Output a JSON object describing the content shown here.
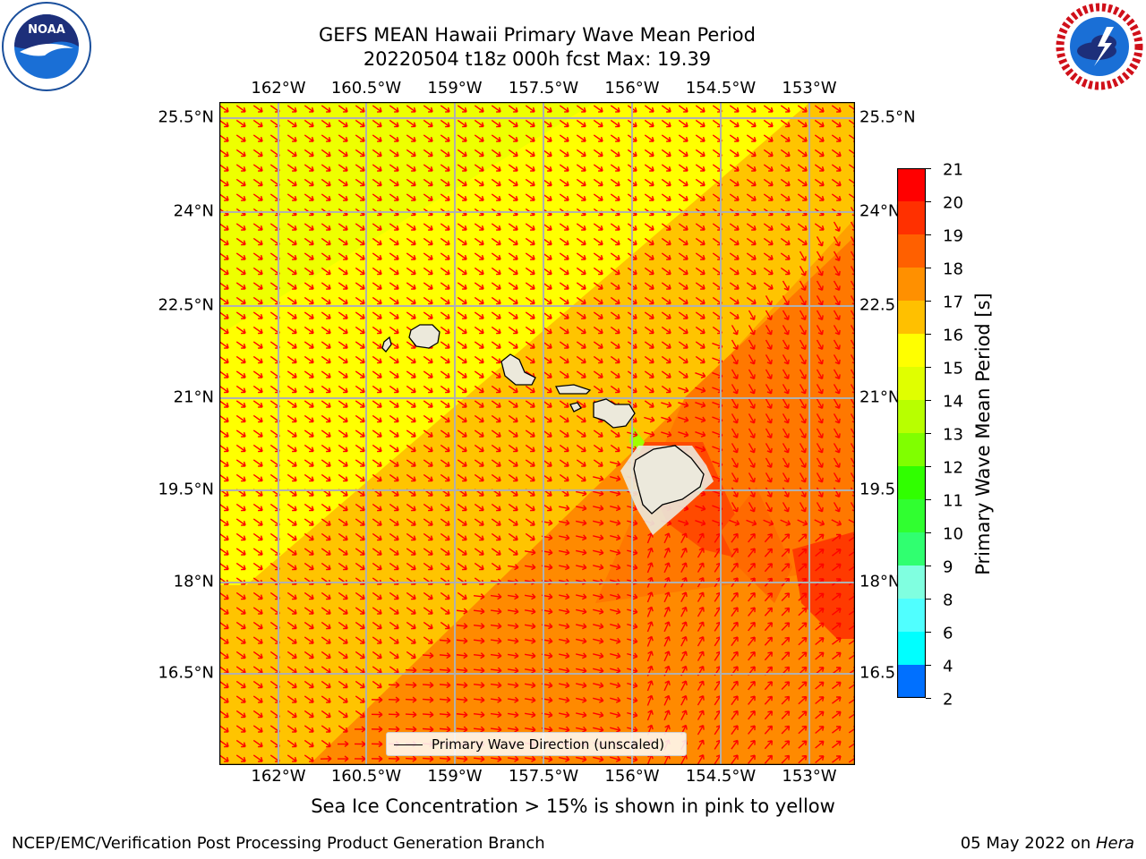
{
  "title_line1": "GEFS MEAN Hawaii Primary Wave Mean Period",
  "title_line2": "20220504 t18z 000h fcst   Max: 19.39",
  "logos": {
    "left": "noaa-logo",
    "right": "nws-logo"
  },
  "map": {
    "lon_ticks": [
      "162°W",
      "160.5°W",
      "159°W",
      "157.5°W",
      "156°W",
      "154.5°W",
      "153°W"
    ],
    "lat_ticks_left": [
      "25.5°N",
      "24°N",
      "22.5°N",
      "21°N",
      "19.5°N",
      "18°N",
      "16.5°N"
    ],
    "lat_ticks_right": [
      "25.5°N",
      "24°N",
      "22.5",
      "21°N",
      "19.5",
      "18°N",
      "16.5"
    ],
    "legend_text": "Primary Wave Direction (unscaled)",
    "arrow_color": "#ff0000",
    "grid_color": "#b0b0b0",
    "land_color": "#ece9db"
  },
  "colorbar": {
    "ticks": [
      "21",
      "20",
      "19",
      "18",
      "17",
      "16",
      "15",
      "14",
      "13",
      "12",
      "11",
      "10",
      "9",
      "8",
      "6",
      "4",
      "2"
    ],
    "colors": [
      "#ff0000",
      "#ff3000",
      "#ff6000",
      "#ff9000",
      "#ffc000",
      "#ffff00",
      "#e0ff00",
      "#b8ff00",
      "#80ff00",
      "#30ff00",
      "#30ff30",
      "#30ff70",
      "#80ffe0",
      "#50ffff",
      "#00ffff",
      "#0070ff",
      "#0000ff"
    ],
    "label": "Primary Wave Mean Period [s]"
  },
  "chart_data": {
    "type": "heatmap",
    "title": "GEFS MEAN Hawaii Primary Wave Mean Period",
    "subtitle": "20220504 t18z 000h fcst   Max: 19.39",
    "colorbar_label": "Primary Wave Mean Period [s]",
    "max_value": 19.39,
    "lon_range": [
      -163,
      -152.2
    ],
    "lat_range": [
      15.0,
      25.7
    ],
    "region_values": [
      {
        "region": "northwest",
        "period_s": 15.5
      },
      {
        "region": "central band",
        "period_s": 16.5
      },
      {
        "region": "southeast",
        "period_s": 17.5
      },
      {
        "region": "east of Big Island",
        "period_s": 18.5
      }
    ]
  },
  "sea_ice_note": "Sea Ice Concentration > 15% is shown in pink to yellow",
  "footer_left": "NCEP/EMC/Verification Post Processing Product Generation Branch",
  "footer_right_prefix": "05 May 2022 on ",
  "footer_right_host": "Hera"
}
